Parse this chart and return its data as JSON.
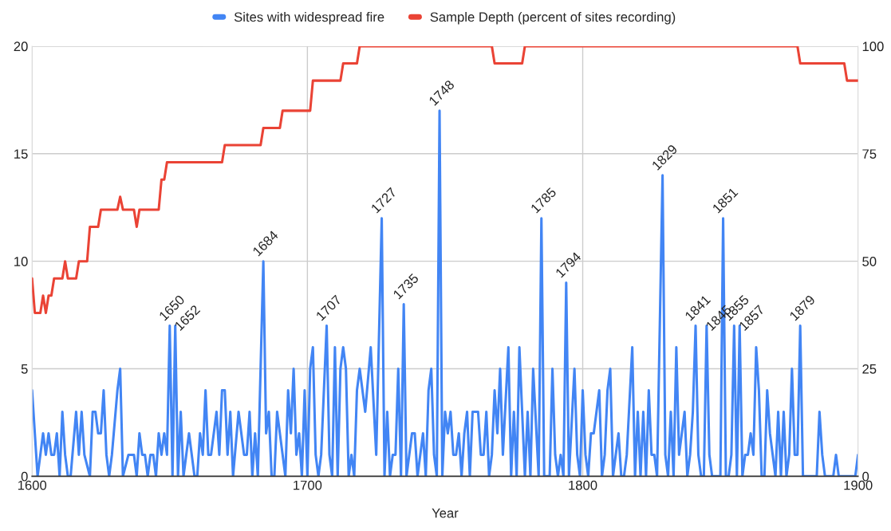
{
  "chart_data": {
    "type": "line",
    "xlabel": "Year",
    "xlim": [
      1600,
      1900
    ],
    "xticks": [
      1600,
      1700,
      1800,
      1900
    ],
    "ylim": [
      0,
      20
    ],
    "yticks": [
      0,
      5,
      10,
      15,
      20
    ],
    "y2lim": [
      0,
      100
    ],
    "y2ticks": [
      0,
      25,
      50,
      75,
      100
    ],
    "grid": true,
    "legend": "top",
    "marker": "none",
    "line_style": "solid",
    "series": [
      {
        "name": "Sites with widespread fire",
        "color": "#4285f4",
        "x": [
          1600,
          1602,
          1604,
          1605,
          1606,
          1607,
          1608,
          1609,
          1610,
          1611,
          1612,
          1613,
          1614,
          1616,
          1617,
          1618,
          1619,
          1621,
          1622,
          1623,
          1624,
          1625,
          1626,
          1627,
          1628,
          1629,
          1631,
          1632,
          1633,
          1635,
          1637,
          1638,
          1639,
          1640,
          1641,
          1642,
          1643,
          1644,
          1645,
          1646,
          1647,
          1648,
          1649,
          1650,
          1651,
          1652,
          1653,
          1654,
          1655,
          1657,
          1659,
          1660,
          1661,
          1662,
          1663,
          1664,
          1665,
          1667,
          1668,
          1669,
          1670,
          1671,
          1672,
          1673,
          1675,
          1677,
          1678,
          1679,
          1680,
          1681,
          1682,
          1684,
          1685,
          1686,
          1687,
          1688,
          1689,
          1691,
          1692,
          1693,
          1694,
          1695,
          1696,
          1697,
          1698,
          1699,
          1700,
          1701,
          1702,
          1703,
          1704,
          1705,
          1707,
          1708,
          1709,
          1710,
          1711,
          1712,
          1713,
          1714,
          1715,
          1716,
          1717,
          1718,
          1719,
          1721,
          1723,
          1725,
          1727,
          1728,
          1729,
          1730,
          1731,
          1732,
          1733,
          1734,
          1735,
          1736,
          1738,
          1739,
          1740,
          1742,
          1743,
          1744,
          1745,
          1746,
          1747,
          1748,
          1749,
          1750,
          1751,
          1752,
          1753,
          1754,
          1755,
          1756,
          1757,
          1758,
          1759,
          1760,
          1762,
          1763,
          1764,
          1765,
          1766,
          1767,
          1768,
          1769,
          1770,
          1771,
          1773,
          1774,
          1775,
          1776,
          1777,
          1779,
          1780,
          1781,
          1782,
          1784,
          1785,
          1786,
          1788,
          1789,
          1790,
          1791,
          1792,
          1793,
          1794,
          1795,
          1797,
          1798,
          1799,
          1800,
          1801,
          1802,
          1803,
          1804,
          1806,
          1807,
          1808,
          1809,
          1810,
          1811,
          1812,
          1813,
          1814,
          1815,
          1816,
          1818,
          1819,
          1820,
          1821,
          1822,
          1823,
          1824,
          1825,
          1826,
          1827,
          1829,
          1830,
          1831,
          1832,
          1833,
          1834,
          1835,
          1837,
          1838,
          1839,
          1840,
          1841,
          1842,
          1843,
          1844,
          1845,
          1846,
          1847,
          1850,
          1851,
          1852,
          1853,
          1854,
          1855,
          1856,
          1857,
          1858,
          1859,
          1860,
          1861,
          1862,
          1863,
          1864,
          1865,
          1866,
          1867,
          1868,
          1869,
          1870,
          1871,
          1872,
          1873,
          1874,
          1875,
          1876,
          1877,
          1878,
          1879,
          1880,
          1885,
          1886,
          1887,
          1888,
          1891,
          1892,
          1893,
          1899,
          1900
        ],
        "values": [
          4,
          0,
          2,
          1,
          2,
          1,
          1,
          2,
          0,
          3,
          1,
          0,
          0,
          3,
          1,
          3,
          1,
          0,
          3,
          3,
          2,
          2,
          4,
          1,
          0,
          1,
          4,
          5,
          0,
          1,
          1,
          0,
          2,
          1,
          1,
          0,
          1,
          1,
          0,
          2,
          1,
          2,
          1,
          7,
          0,
          7,
          0,
          3,
          0,
          2,
          0,
          0,
          2,
          1,
          4,
          1,
          1,
          3,
          1,
          4,
          4,
          1,
          3,
          0,
          3,
          1,
          1,
          3,
          0,
          2,
          0,
          10,
          2,
          3,
          0,
          0,
          3,
          1,
          0,
          4,
          2,
          5,
          1,
          2,
          0,
          4,
          0,
          5,
          6,
          1,
          0,
          1,
          7,
          1,
          0,
          6,
          0,
          5,
          6,
          5,
          0,
          1,
          0,
          4,
          5,
          3,
          6,
          1,
          12,
          0,
          3,
          0,
          1,
          1,
          5,
          0,
          8,
          0,
          2,
          2,
          0,
          2,
          0,
          4,
          5,
          1,
          0,
          17,
          0,
          3,
          2,
          3,
          1,
          1,
          2,
          0,
          2,
          3,
          0,
          3,
          3,
          1,
          1,
          3,
          0,
          1,
          4,
          2,
          5,
          1,
          6,
          0,
          3,
          0,
          6,
          0,
          3,
          0,
          5,
          0,
          12,
          0,
          0,
          5,
          1,
          0,
          1,
          0,
          9,
          0,
          5,
          1,
          0,
          4,
          1,
          0,
          2,
          2,
          4,
          0,
          1,
          4,
          5,
          0,
          1,
          2,
          0,
          0,
          1,
          6,
          0,
          3,
          0,
          3,
          0,
          4,
          1,
          1,
          0,
          14,
          1,
          0,
          3,
          0,
          6,
          1,
          3,
          0,
          1,
          3,
          7,
          1,
          0,
          0,
          7,
          1,
          0,
          0,
          12,
          0,
          0,
          1,
          7,
          0,
          7,
          0,
          1,
          1,
          2,
          1,
          6,
          4,
          0,
          0,
          4,
          2,
          1,
          0,
          3,
          0,
          3,
          0,
          1,
          5,
          1,
          1,
          7,
          0,
          0,
          3,
          1,
          0,
          0,
          1,
          0,
          0,
          1
        ]
      },
      {
        "name": "Sample Depth (percent of sites recording)",
        "color": "#ea4335",
        "axis": "y2",
        "x": [
          1600,
          1601,
          1603,
          1604,
          1605,
          1606,
          1607,
          1608,
          1611,
          1612,
          1613,
          1616,
          1617,
          1620,
          1621,
          1624,
          1625,
          1631,
          1632,
          1633,
          1637,
          1638,
          1639,
          1646,
          1647,
          1648,
          1649,
          1669,
          1670,
          1683,
          1684,
          1690,
          1691,
          1701,
          1702,
          1712,
          1713,
          1718,
          1719,
          1767,
          1768,
          1778,
          1779,
          1878,
          1879,
          1895,
          1896,
          1900
        ],
        "values": [
          46,
          38,
          38,
          42,
          38,
          42,
          42,
          46,
          46,
          50,
          46,
          46,
          50,
          50,
          58,
          58,
          62,
          62,
          65,
          62,
          62,
          58,
          62,
          62,
          69,
          69,
          73,
          73,
          77,
          77,
          81,
          81,
          85,
          85,
          92,
          92,
          96,
          96,
          100,
          100,
          96,
          96,
          100,
          100,
          96,
          96,
          92,
          92
        ]
      }
    ],
    "annotations": [
      {
        "text": "1650",
        "x": 1650,
        "y": 7
      },
      {
        "text": "1652",
        "x": 1652,
        "y": 7
      },
      {
        "text": "1684",
        "x": 1684,
        "y": 10
      },
      {
        "text": "1707",
        "x": 1707,
        "y": 7
      },
      {
        "text": "1727",
        "x": 1727,
        "y": 12
      },
      {
        "text": "1735",
        "x": 1735,
        "y": 8
      },
      {
        "text": "1748",
        "x": 1748,
        "y": 17
      },
      {
        "text": "1785",
        "x": 1785,
        "y": 12
      },
      {
        "text": "1794",
        "x": 1794,
        "y": 9
      },
      {
        "text": "1829",
        "x": 1829,
        "y": 14
      },
      {
        "text": "1841",
        "x": 1841,
        "y": 7
      },
      {
        "text": "1845",
        "x": 1845,
        "y": 7
      },
      {
        "text": "1851",
        "x": 1851,
        "y": 12
      },
      {
        "text": "1855",
        "x": 1855,
        "y": 7
      },
      {
        "text": "1857",
        "x": 1857,
        "y": 7
      },
      {
        "text": "1879",
        "x": 1879,
        "y": 7
      }
    ]
  }
}
